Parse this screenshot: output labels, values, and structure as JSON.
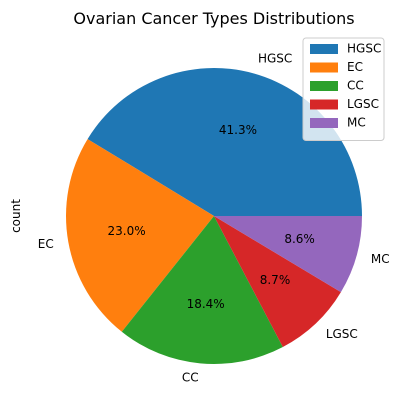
{
  "chart_data": {
    "type": "pie",
    "title": "Ovarian Cancer Types Distributions",
    "ylabel": "count",
    "categories": [
      "HGSC",
      "EC",
      "CC",
      "LGSC",
      "MC"
    ],
    "values": [
      41.3,
      23.0,
      18.4,
      8.7,
      8.6
    ],
    "percent_labels": [
      "41.3%",
      "23.0%",
      "18.4%",
      "8.7%",
      "8.6%"
    ],
    "colors": [
      "#1f77b4",
      "#ff7f0e",
      "#2ca02c",
      "#d62728",
      "#9467bd"
    ],
    "start_angle_deg": 0,
    "direction": "counterclockwise",
    "legend": {
      "placement": "top-right",
      "entries": [
        "HGSC",
        "EC",
        "CC",
        "LGSC",
        "MC"
      ]
    }
  }
}
